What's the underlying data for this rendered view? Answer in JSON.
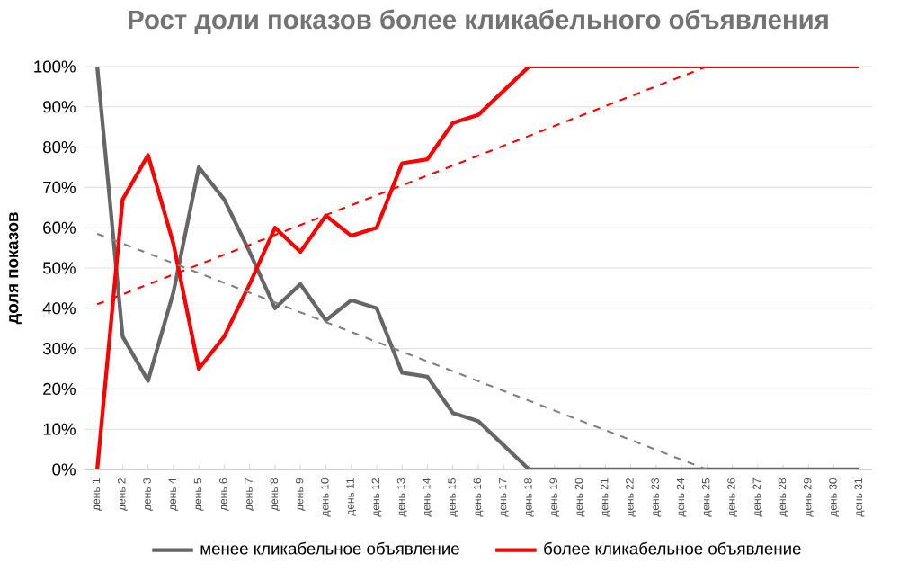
{
  "chart_data": {
    "type": "line",
    "title": "Рост доли показов более кликабельного объявления",
    "ylabel": "доля показов",
    "categories": [
      "день 1",
      "день 2",
      "день 3",
      "день 4",
      "день 5",
      "день 6",
      "день 7",
      "день 8",
      "день 9",
      "день 10",
      "день 11",
      "день 12",
      "день 13",
      "день 14",
      "день 15",
      "день 16",
      "день 17",
      "день 18",
      "день 19",
      "день 20",
      "день 21",
      "день 22",
      "день 23",
      "день 24",
      "день 25",
      "день 26",
      "день 27",
      "день 28",
      "день 29",
      "день 30",
      "день 31"
    ],
    "ylim": [
      0,
      100
    ],
    "yticks": [
      {
        "value": 0,
        "label": "0%"
      },
      {
        "value": 10,
        "label": "10%"
      },
      {
        "value": 20,
        "label": "20%"
      },
      {
        "value": 30,
        "label": "30%"
      },
      {
        "value": 40,
        "label": "40%"
      },
      {
        "value": 50,
        "label": "50%"
      },
      {
        "value": 60,
        "label": "60%"
      },
      {
        "value": 70,
        "label": "70%"
      },
      {
        "value": 80,
        "label": "80%"
      },
      {
        "value": 90,
        "label": "90%"
      },
      {
        "value": 100,
        "label": "100%"
      }
    ],
    "grid": "y",
    "legend": "bottom",
    "series": [
      {
        "name": "менее кликабельное объявление",
        "color": "#666666",
        "line_style": "solid",
        "values": [
          100,
          33,
          22,
          44,
          75,
          67,
          54,
          40,
          46,
          37,
          42,
          40,
          24,
          23,
          14,
          12,
          6,
          0,
          0,
          0,
          0,
          0,
          0,
          0,
          0,
          0,
          0,
          0,
          0,
          0,
          0
        ]
      },
      {
        "name": "более кликабельное объявление",
        "color": "#ff0000",
        "line_style": "solid",
        "values": [
          0,
          67,
          78,
          56,
          25,
          33,
          46,
          60,
          54,
          63,
          58,
          60,
          76,
          77,
          86,
          88,
          94,
          100,
          100,
          100,
          100,
          100,
          100,
          100,
          100,
          100,
          100,
          100,
          100,
          100,
          100
        ]
      },
      {
        "type": "line",
        "color": "#808080",
        "line_style": "dashed",
        "x": [
          "день 1",
          "день 25"
        ],
        "values": [
          58.5,
          0
        ]
      },
      {
        "type": "line",
        "color": "#ff0000",
        "line_style": "dashed",
        "x": [
          "день 1",
          "день 25"
        ],
        "values": [
          41,
          100
        ]
      }
    ]
  }
}
